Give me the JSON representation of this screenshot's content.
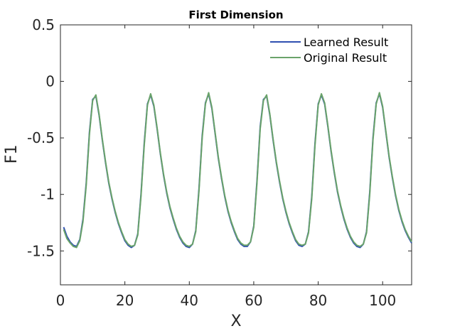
{
  "chart_data": {
    "type": "line",
    "title": "First Dimension",
    "xlabel": "X",
    "ylabel": "F1",
    "xlim": [
      0,
      109
    ],
    "ylim": [
      -1.8,
      0.5
    ],
    "xticks": [
      0,
      20,
      40,
      60,
      80,
      100
    ],
    "yticks": [
      0.5,
      0,
      -0.5,
      -1,
      -1.5
    ],
    "ytick_labels": [
      "0.5",
      "0",
      "-0.5",
      "-1",
      "-1.5"
    ],
    "grid": false,
    "legend": "top-right",
    "colors": {
      "learned": "#2f4fb0",
      "original": "#6aa36a"
    },
    "x": [
      1,
      2,
      3,
      4,
      5,
      6,
      7,
      8,
      9,
      10,
      11,
      12,
      13,
      14,
      15,
      16,
      17,
      18,
      19,
      20,
      21,
      22,
      23,
      24,
      25,
      26,
      27,
      28,
      29,
      30,
      31,
      32,
      33,
      34,
      35,
      36,
      37,
      38,
      39,
      40,
      41,
      42,
      43,
      44,
      45,
      46,
      47,
      48,
      49,
      50,
      51,
      52,
      53,
      54,
      55,
      56,
      57,
      58,
      59,
      60,
      61,
      62,
      63,
      64,
      65,
      66,
      67,
      68,
      69,
      70,
      71,
      72,
      73,
      74,
      75,
      76,
      77,
      78,
      79,
      80,
      81,
      82,
      83,
      84,
      85,
      86,
      87,
      88,
      89,
      90,
      91,
      92,
      93,
      94,
      95,
      96,
      97,
      98,
      99,
      100,
      101,
      102,
      103,
      104,
      105,
      106,
      107,
      108,
      109
    ],
    "series": [
      {
        "name": "Learned Result",
        "values": [
          -1.29,
          -1.37,
          -1.42,
          -1.45,
          -1.46,
          -1.4,
          -1.22,
          -0.9,
          -0.45,
          -0.16,
          -0.13,
          -0.3,
          -0.52,
          -0.72,
          -0.9,
          -1.04,
          -1.16,
          -1.26,
          -1.34,
          -1.41,
          -1.45,
          -1.47,
          -1.45,
          -1.35,
          -1.0,
          -0.55,
          -0.2,
          -0.12,
          -0.22,
          -0.42,
          -0.64,
          -0.83,
          -0.99,
          -1.12,
          -1.22,
          -1.31,
          -1.38,
          -1.43,
          -1.46,
          -1.47,
          -1.44,
          -1.32,
          -0.95,
          -0.48,
          -0.19,
          -0.11,
          -0.24,
          -0.46,
          -0.68,
          -0.86,
          -1.02,
          -1.15,
          -1.25,
          -1.33,
          -1.4,
          -1.44,
          -1.46,
          -1.46,
          -1.42,
          -1.28,
          -0.88,
          -0.4,
          -0.16,
          -0.13,
          -0.3,
          -0.52,
          -0.72,
          -0.89,
          -1.04,
          -1.16,
          -1.26,
          -1.34,
          -1.41,
          -1.45,
          -1.46,
          -1.44,
          -1.33,
          -1.02,
          -0.55,
          -0.2,
          -0.12,
          -0.2,
          -0.4,
          -0.62,
          -0.81,
          -0.98,
          -1.11,
          -1.22,
          -1.31,
          -1.38,
          -1.43,
          -1.46,
          -1.47,
          -1.44,
          -1.33,
          -0.98,
          -0.5,
          -0.19,
          -0.11,
          -0.23,
          -0.45,
          -0.67,
          -0.85,
          -1.01,
          -1.14,
          -1.24,
          -1.32,
          -1.38,
          -1.43
        ]
      },
      {
        "name": "Original Result",
        "values": [
          -1.31,
          -1.39,
          -1.43,
          -1.46,
          -1.47,
          -1.41,
          -1.24,
          -0.92,
          -0.47,
          -0.17,
          -0.12,
          -0.29,
          -0.51,
          -0.71,
          -0.89,
          -1.03,
          -1.15,
          -1.25,
          -1.33,
          -1.4,
          -1.44,
          -1.46,
          -1.45,
          -1.36,
          -1.02,
          -0.57,
          -0.21,
          -0.11,
          -0.21,
          -0.41,
          -0.63,
          -0.82,
          -0.98,
          -1.11,
          -1.21,
          -1.3,
          -1.37,
          -1.42,
          -1.45,
          -1.46,
          -1.44,
          -1.33,
          -0.97,
          -0.5,
          -0.2,
          -0.1,
          -0.23,
          -0.45,
          -0.67,
          -0.85,
          -1.01,
          -1.14,
          -1.24,
          -1.32,
          -1.39,
          -1.43,
          -1.45,
          -1.45,
          -1.42,
          -1.29,
          -0.9,
          -0.42,
          -0.17,
          -0.12,
          -0.29,
          -0.51,
          -0.71,
          -0.88,
          -1.03,
          -1.15,
          -1.25,
          -1.33,
          -1.4,
          -1.44,
          -1.45,
          -1.44,
          -1.34,
          -1.04,
          -0.57,
          -0.21,
          -0.11,
          -0.19,
          -0.39,
          -0.61,
          -0.8,
          -0.97,
          -1.1,
          -1.21,
          -1.3,
          -1.37,
          -1.42,
          -1.45,
          -1.46,
          -1.44,
          -1.34,
          -1.0,
          -0.52,
          -0.2,
          -0.1,
          -0.22,
          -0.44,
          -0.66,
          -0.84,
          -1.0,
          -1.13,
          -1.23,
          -1.31,
          -1.37,
          -1.42
        ]
      }
    ]
  }
}
